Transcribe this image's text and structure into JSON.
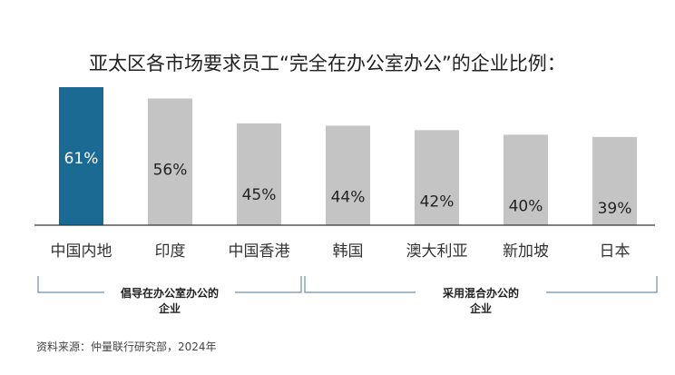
{
  "chart_data": {
    "type": "bar",
    "title": "亚太区各市场要求员工“完全在办公室办公”的企业比例：",
    "categories": [
      "中国内地",
      "印度",
      "中国香港",
      "韩国",
      "澳大利亚",
      "新加坡",
      "日本"
    ],
    "values": [
      61,
      56,
      45,
      44,
      42,
      40,
      39
    ],
    "value_labels": [
      "61%",
      "56%",
      "45%",
      "44%",
      "42%",
      "40%",
      "39%"
    ],
    "ylim": [
      0,
      65
    ],
    "grid": false,
    "colors": {
      "highlight": "#1a6a93",
      "default": "#c4c4c4",
      "highlight_text": "#ffffff",
      "default_text": "#222222",
      "bracket": "#6b8fb0"
    },
    "highlight_index": 0,
    "groups": [
      {
        "line1": "倡导在办公室办公的",
        "line2": "企业",
        "from": 0,
        "to": 2
      },
      {
        "line1": "采用混合办公的",
        "line2": "企业",
        "from": 3,
        "to": 6
      }
    ]
  },
  "source": "资料来源：仲量联行研究部，2024年"
}
